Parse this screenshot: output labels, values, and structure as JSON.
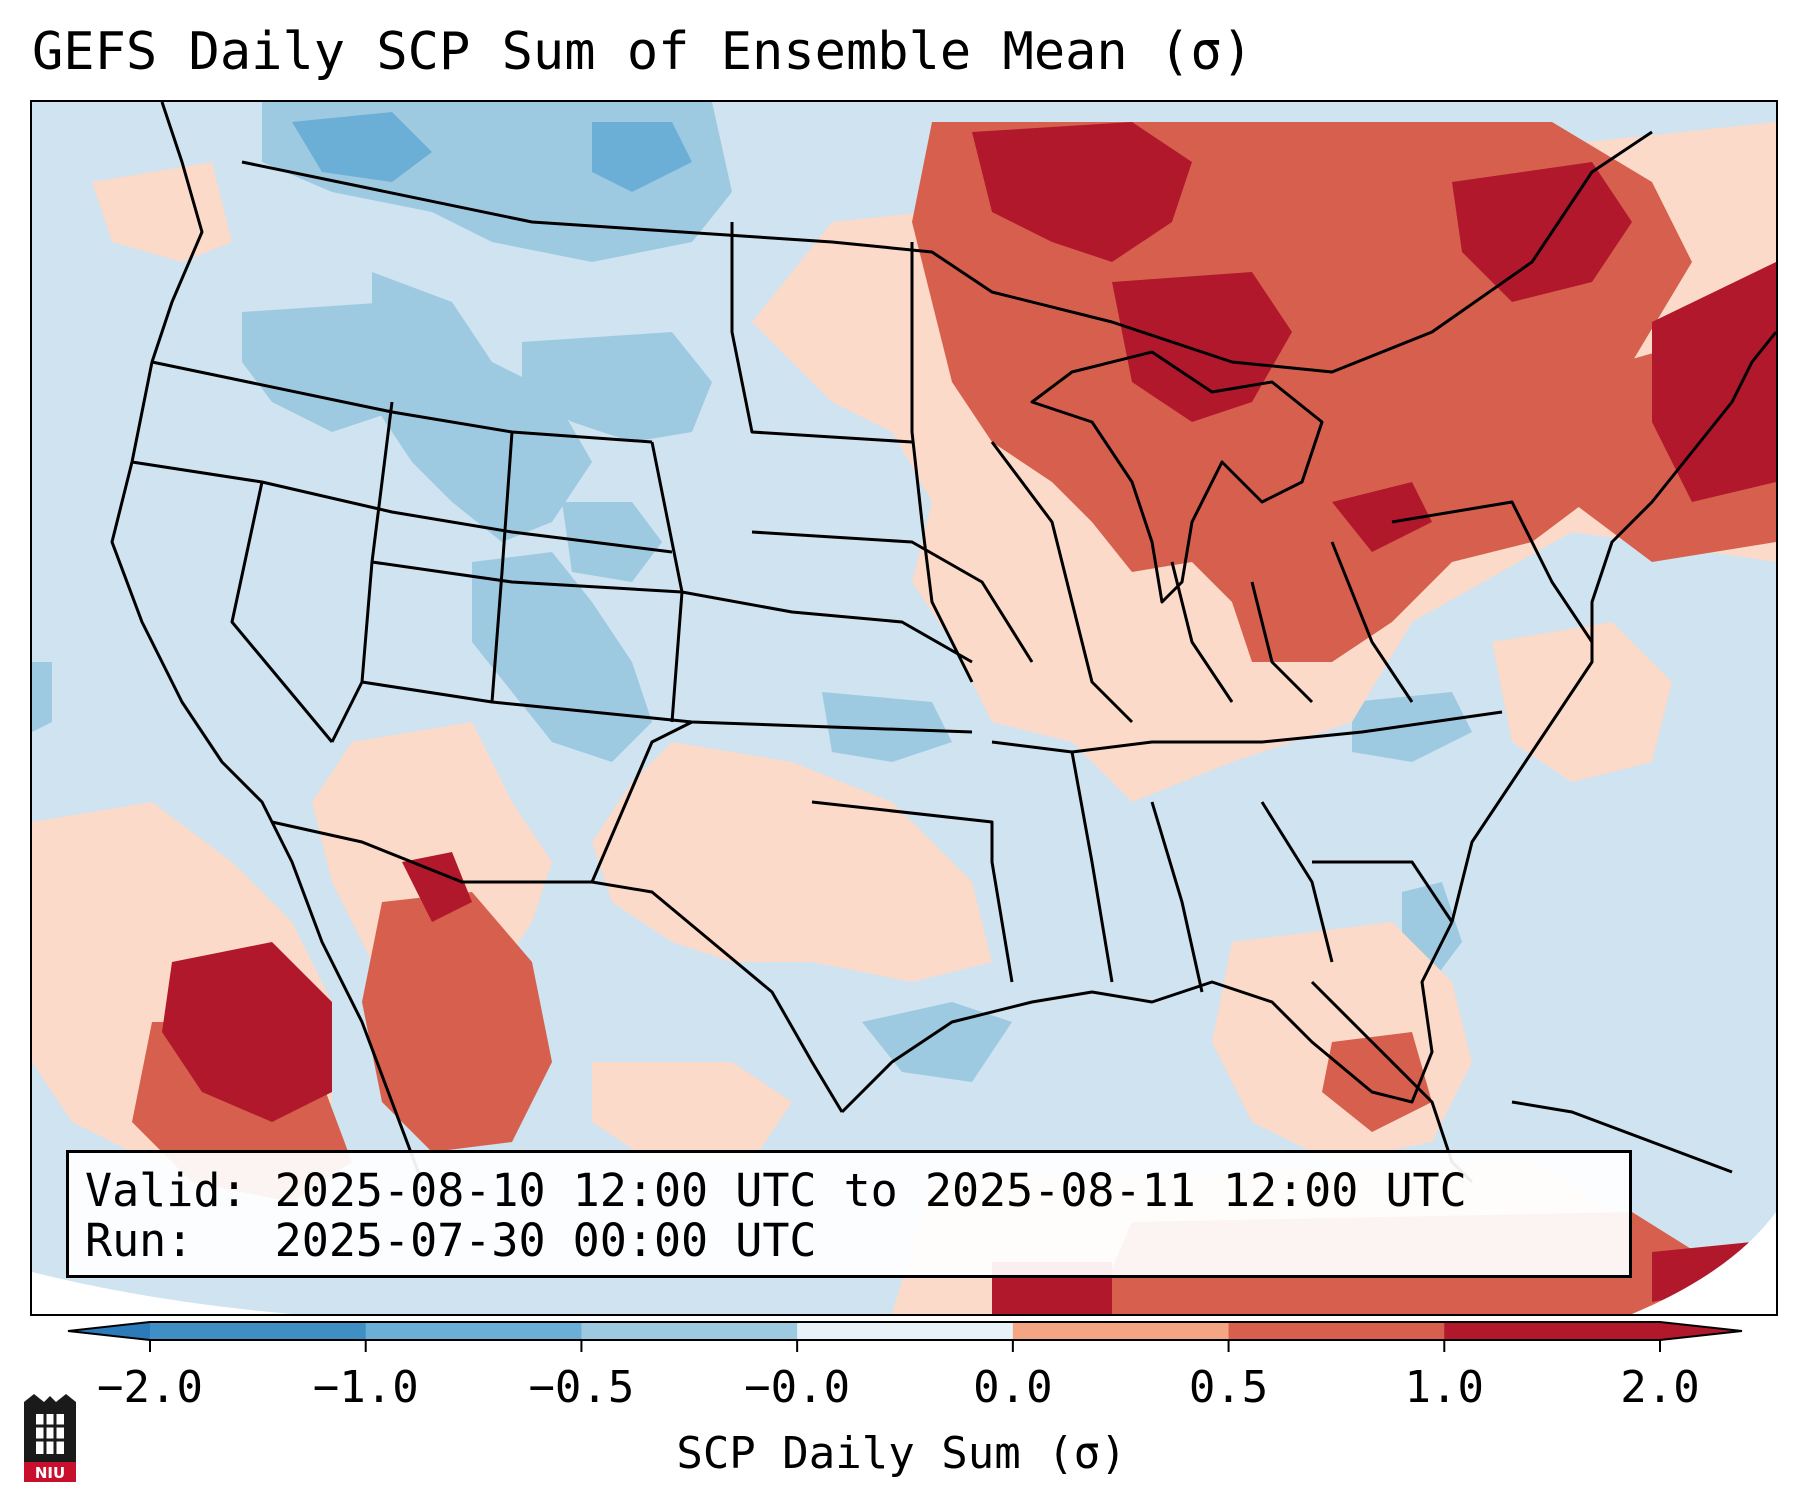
{
  "title": "GEFS Daily SCP Sum of Ensemble Mean (σ)",
  "info": {
    "valid_label": "Valid:",
    "valid_value": "2025-08-10 12:00 UTC to 2025-08-11 12:00 UTC",
    "run_label": "Run:",
    "run_value": "2025-07-30 00:00 UTC"
  },
  "colorbar": {
    "label": "SCP Daily Sum (σ)",
    "ticks": [
      "−2.0",
      "−1.0",
      "−0.5",
      "−0.0",
      "0.0",
      "0.5",
      "1.0",
      "2.0"
    ],
    "colors": [
      "#3f8fc5",
      "#6baed6",
      "#9ecae1",
      "#cfe3f0",
      "#fbdac9",
      "#f4a582",
      "#d6604d",
      "#b2182b"
    ],
    "extend_low_color": "#2b7bba",
    "extend_high_color": "#b2182b"
  },
  "logo": {
    "text": "NIU",
    "color": "#c8102e"
  }
}
